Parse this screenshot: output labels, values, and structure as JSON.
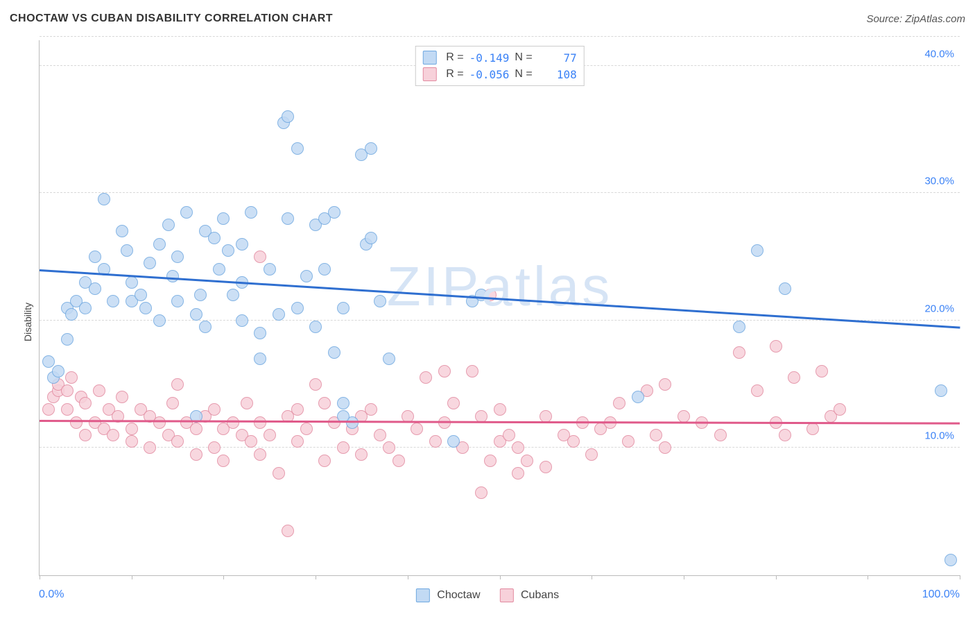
{
  "title": "CHOCTAW VS CUBAN DISABILITY CORRELATION CHART",
  "source": "Source: ZipAtlas.com",
  "watermark": "ZIPatlas",
  "watermark_color": "#d6e4f5",
  "ylabel": "Disability",
  "xlim": [
    0,
    100
  ],
  "ylim": [
    0,
    42
  ],
  "x_tick_positions": [
    0,
    10,
    20,
    30,
    40,
    50,
    60,
    70,
    80,
    90,
    100
  ],
  "y_gridlines": [
    10,
    20,
    30,
    40,
    42.3
  ],
  "y_tick_labels": [
    {
      "value": 10,
      "label": "10.0%"
    },
    {
      "value": 20,
      "label": "20.0%"
    },
    {
      "value": 30,
      "label": "30.0%"
    },
    {
      "value": 40,
      "label": "40.0%"
    }
  ],
  "x_start_label": "0.0%",
  "x_end_label": "100.0%",
  "axis_label_color": "#3b82f6",
  "legend": {
    "series_a": "Choctaw",
    "series_b": "Cubans"
  },
  "stats": {
    "a": {
      "R": "-0.149",
      "N": "77"
    },
    "b": {
      "R": "-0.056",
      "N": "108"
    }
  },
  "series_a": {
    "name": "Choctaw",
    "fill": "#c2daf4",
    "stroke": "#6fa8e0",
    "line_color": "#2f6fd0",
    "reg_start_y": 24.0,
    "reg_end_y": 19.5,
    "marker_radius": 9,
    "points": [
      [
        1,
        16.8
      ],
      [
        1.5,
        15.5
      ],
      [
        2,
        16.0
      ],
      [
        3,
        18.5
      ],
      [
        3,
        21.0
      ],
      [
        3.5,
        20.5
      ],
      [
        4,
        21.5
      ],
      [
        5,
        21.0
      ],
      [
        5,
        23.0
      ],
      [
        6,
        22.5
      ],
      [
        6,
        25.0
      ],
      [
        7,
        24.0
      ],
      [
        7,
        29.5
      ],
      [
        8,
        21.5
      ],
      [
        9,
        27.0
      ],
      [
        9.5,
        25.5
      ],
      [
        10,
        23.0
      ],
      [
        10,
        21.5
      ],
      [
        11,
        22.0
      ],
      [
        11.5,
        21.0
      ],
      [
        12,
        24.5
      ],
      [
        13,
        26.0
      ],
      [
        13,
        20.0
      ],
      [
        14,
        27.5
      ],
      [
        14.5,
        23.5
      ],
      [
        15,
        21.5
      ],
      [
        15,
        25.0
      ],
      [
        16,
        28.5
      ],
      [
        17,
        20.5
      ],
      [
        17.5,
        22.0
      ],
      [
        18,
        19.5
      ],
      [
        18,
        27.0
      ],
      [
        19,
        26.5
      ],
      [
        19.5,
        24.0
      ],
      [
        20,
        28.0
      ],
      [
        20.5,
        25.5
      ],
      [
        21,
        22.0
      ],
      [
        22,
        20.0
      ],
      [
        22,
        23.0
      ],
      [
        22,
        26.0
      ],
      [
        23,
        28.5
      ],
      [
        24,
        19.0
      ],
      [
        25,
        24.0
      ],
      [
        26,
        20.5
      ],
      [
        26.5,
        35.5
      ],
      [
        27,
        36.0
      ],
      [
        27,
        28.0
      ],
      [
        28,
        21.0
      ],
      [
        28,
        33.5
      ],
      [
        29,
        23.5
      ],
      [
        30,
        27.5
      ],
      [
        30,
        19.5
      ],
      [
        31,
        24.0
      ],
      [
        31,
        28.0
      ],
      [
        32,
        28.5
      ],
      [
        32,
        17.5
      ],
      [
        33,
        13.5
      ],
      [
        33,
        21.0
      ],
      [
        34,
        12.0
      ],
      [
        35,
        33.0
      ],
      [
        35.5,
        26.0
      ],
      [
        36,
        26.5
      ],
      [
        36,
        33.5
      ],
      [
        37,
        21.5
      ],
      [
        38,
        17.0
      ],
      [
        45,
        10.5
      ],
      [
        47,
        21.5
      ],
      [
        48,
        22.0
      ],
      [
        65,
        14.0
      ],
      [
        76,
        19.5
      ],
      [
        78,
        25.5
      ],
      [
        81,
        22.5
      ],
      [
        98,
        14.5
      ],
      [
        99,
        1.2
      ],
      [
        17,
        12.5
      ],
      [
        33,
        12.5
      ],
      [
        24,
        17.0
      ]
    ]
  },
  "series_b": {
    "name": "Cubans",
    "fill": "#f7d1da",
    "stroke": "#e28aa0",
    "line_color": "#e05a8a",
    "reg_start_y": 12.2,
    "reg_end_y": 12.0,
    "marker_radius": 9,
    "points": [
      [
        1,
        13.0
      ],
      [
        1.5,
        14.0
      ],
      [
        2,
        14.5
      ],
      [
        2,
        15.0
      ],
      [
        3,
        14.5
      ],
      [
        3,
        13.0
      ],
      [
        3.5,
        15.5
      ],
      [
        4,
        12.0
      ],
      [
        4.5,
        14.0
      ],
      [
        5,
        13.5
      ],
      [
        5,
        11.0
      ],
      [
        6,
        12.0
      ],
      [
        6.5,
        14.5
      ],
      [
        7,
        11.5
      ],
      [
        7.5,
        13.0
      ],
      [
        8,
        11.0
      ],
      [
        8.5,
        12.5
      ],
      [
        9,
        14.0
      ],
      [
        10,
        11.5
      ],
      [
        10,
        10.5
      ],
      [
        11,
        13.0
      ],
      [
        12,
        12.5
      ],
      [
        12,
        10.0
      ],
      [
        13,
        12.0
      ],
      [
        14,
        11.0
      ],
      [
        14.5,
        13.5
      ],
      [
        15,
        10.5
      ],
      [
        15,
        15.0
      ],
      [
        16,
        12.0
      ],
      [
        17,
        11.5
      ],
      [
        17,
        9.5
      ],
      [
        18,
        12.5
      ],
      [
        19,
        10.0
      ],
      [
        19,
        13.0
      ],
      [
        20,
        11.5
      ],
      [
        20,
        9.0
      ],
      [
        21,
        12.0
      ],
      [
        22,
        11.0
      ],
      [
        22.5,
        13.5
      ],
      [
        23,
        10.5
      ],
      [
        24,
        12.0
      ],
      [
        24,
        9.5
      ],
      [
        24,
        25.0
      ],
      [
        25,
        11.0
      ],
      [
        26,
        8.0
      ],
      [
        27,
        12.5
      ],
      [
        27,
        3.5
      ],
      [
        28,
        10.5
      ],
      [
        28,
        13.0
      ],
      [
        29,
        11.5
      ],
      [
        30,
        15.0
      ],
      [
        31,
        9.0
      ],
      [
        31,
        13.5
      ],
      [
        32,
        12.0
      ],
      [
        33,
        10.0
      ],
      [
        34,
        11.5
      ],
      [
        35,
        12.5
      ],
      [
        35,
        9.5
      ],
      [
        36,
        13.0
      ],
      [
        37,
        11.0
      ],
      [
        38,
        10.0
      ],
      [
        39,
        9.0
      ],
      [
        40,
        12.5
      ],
      [
        41,
        11.5
      ],
      [
        42,
        15.5
      ],
      [
        43,
        10.5
      ],
      [
        44,
        12.0
      ],
      [
        44,
        16.0
      ],
      [
        45,
        13.5
      ],
      [
        46,
        10.0
      ],
      [
        47,
        16.0
      ],
      [
        48,
        12.5
      ],
      [
        48,
        6.5
      ],
      [
        49,
        9.0
      ],
      [
        49,
        22.0
      ],
      [
        50,
        10.5
      ],
      [
        50,
        13.0
      ],
      [
        51,
        11.0
      ],
      [
        52,
        10.0
      ],
      [
        52,
        8.0
      ],
      [
        53,
        9.0
      ],
      [
        55,
        8.5
      ],
      [
        55,
        12.5
      ],
      [
        57,
        11.0
      ],
      [
        58,
        10.5
      ],
      [
        59,
        12.0
      ],
      [
        60,
        9.5
      ],
      [
        61,
        11.5
      ],
      [
        62,
        12.0
      ],
      [
        63,
        13.5
      ],
      [
        64,
        10.5
      ],
      [
        66,
        14.5
      ],
      [
        67,
        11.0
      ],
      [
        68,
        10.0
      ],
      [
        68,
        15.0
      ],
      [
        70,
        12.5
      ],
      [
        72,
        12.0
      ],
      [
        74,
        11.0
      ],
      [
        76,
        17.5
      ],
      [
        78,
        14.5
      ],
      [
        80,
        12.0
      ],
      [
        80,
        18.0
      ],
      [
        81,
        11.0
      ],
      [
        82,
        15.5
      ],
      [
        84,
        11.5
      ],
      [
        85,
        16.0
      ],
      [
        86,
        12.5
      ],
      [
        87,
        13.0
      ]
    ]
  }
}
